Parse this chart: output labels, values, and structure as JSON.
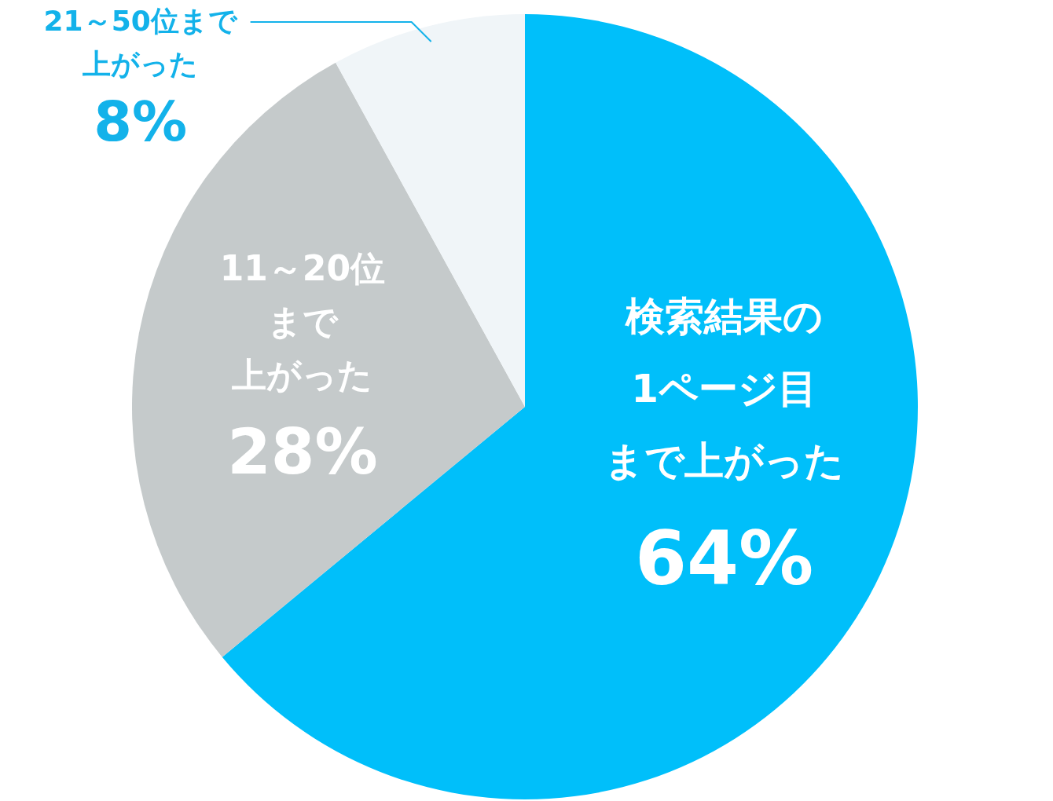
{
  "chart_data": {
    "type": "pie",
    "categories": [
      "検索結果の1ページ目まで上がった",
      "11～20位まで上がった",
      "21～50位まで上がった"
    ],
    "values": [
      64,
      28,
      8
    ],
    "colors": [
      "#00bffa",
      "#c5cacb",
      "#f0f5f8"
    ],
    "value_labels": [
      "64%",
      "28%",
      "8%"
    ]
  }
}
